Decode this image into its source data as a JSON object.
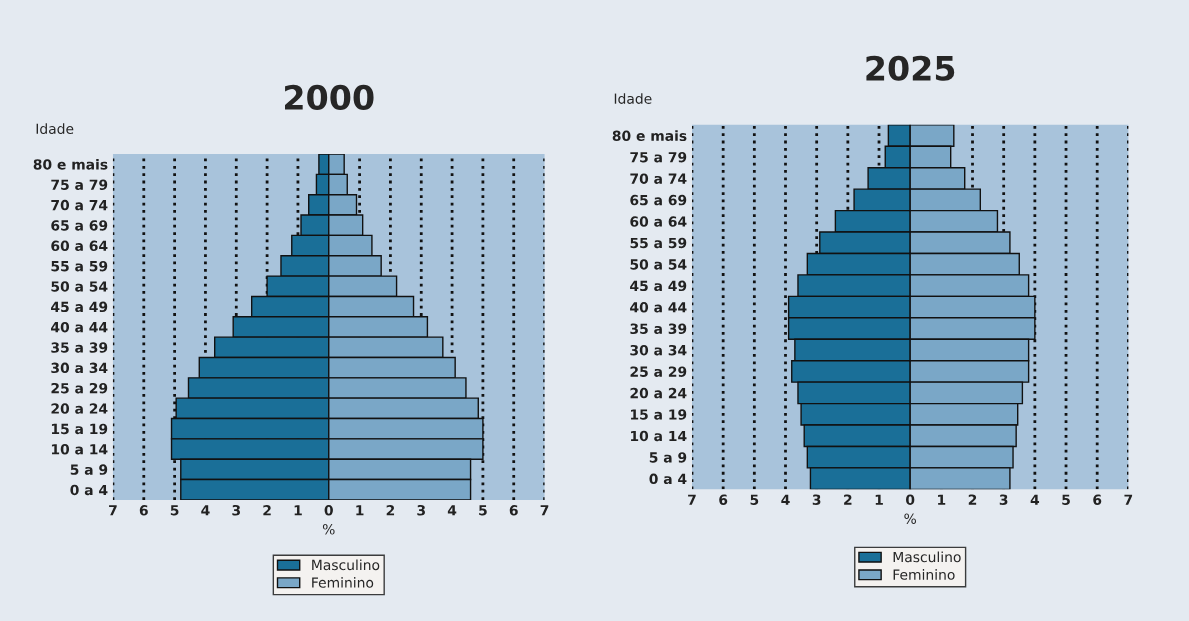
{
  "chart_data": [
    {
      "type": "bar",
      "orientation": "horizontal",
      "stacked": true,
      "title": "2000",
      "ylabel": "Idade",
      "xlabel": "%",
      "categories": [
        "80 e mais",
        "75 a 79",
        "70 a 74",
        "65 a 69",
        "60 a 64",
        "55 a 59",
        "50 a 54",
        "45 a 49",
        "40 a 44",
        "35 a 39",
        "30 a 34",
        "25 a 29",
        "20 a 24",
        "15 a 19",
        "10 a 14",
        "5 a 9",
        "0 a 4"
      ],
      "series": [
        {
          "name": "Masculino",
          "color": "#1a6f98",
          "values": [
            -0.32,
            -0.4,
            -0.65,
            -0.9,
            -1.2,
            -1.55,
            -2.0,
            -2.5,
            -3.1,
            -3.7,
            -4.2,
            -4.55,
            -4.95,
            -5.1,
            -5.1,
            -4.8,
            -4.8
          ]
        },
        {
          "name": "Feminino",
          "color": "#7aa7c7",
          "values": [
            0.5,
            0.6,
            0.9,
            1.1,
            1.4,
            1.7,
            2.2,
            2.75,
            3.2,
            3.7,
            4.1,
            4.45,
            4.85,
            5.0,
            5.0,
            4.6,
            4.6
          ]
        }
      ],
      "xlim": [
        -7,
        7
      ],
      "xticks": [
        {
          "value": -7,
          "label": "7"
        },
        {
          "value": -6,
          "label": "6"
        },
        {
          "value": -5,
          "label": "5"
        },
        {
          "value": -4,
          "label": "4"
        },
        {
          "value": -3,
          "label": "3"
        },
        {
          "value": -2,
          "label": "2"
        },
        {
          "value": -1,
          "label": "1"
        },
        0,
        1,
        2,
        3,
        4,
        5,
        6,
        7
      ],
      "grid": "x",
      "line_style": "dotted",
      "legend": "bottom"
    },
    {
      "type": "bar",
      "orientation": "horizontal",
      "stacked": true,
      "title": "2025",
      "ylabel": "Idade",
      "xlabel": "%",
      "categories": [
        "80 e mais",
        "75 a 79",
        "70 a 74",
        "65 a 69",
        "60 a 64",
        "55 a 59",
        "50 a 54",
        "45 a 49",
        "40 a 44",
        "35 a 39",
        "30 a 34",
        "25 a 29",
        "20 a 24",
        "15 a 19",
        "10 a 14",
        "5 a 9",
        "0 a 4"
      ],
      "series": [
        {
          "name": "Masculino",
          "color": "#1a6f98",
          "values": [
            -0.7,
            -0.8,
            -1.35,
            -1.8,
            -2.4,
            -2.9,
            -3.3,
            -3.6,
            -3.9,
            -3.9,
            -3.7,
            -3.8,
            -3.6,
            -3.5,
            -3.4,
            -3.3,
            -3.2
          ]
        },
        {
          "name": "Feminino",
          "color": "#7aa7c7",
          "values": [
            1.4,
            1.3,
            1.75,
            2.25,
            2.8,
            3.2,
            3.5,
            3.8,
            4.0,
            4.0,
            3.8,
            3.8,
            3.6,
            3.45,
            3.4,
            3.3,
            3.2
          ]
        }
      ],
      "xlim": [
        -7,
        7
      ],
      "xticks": [
        {
          "value": -7,
          "label": "7"
        },
        {
          "value": -6,
          "label": "6"
        },
        {
          "value": -5,
          "label": "5"
        },
        {
          "value": -4,
          "label": "4"
        },
        {
          "value": -3,
          "label": "3"
        },
        {
          "value": -2,
          "label": "2"
        },
        {
          "value": -1,
          "label": "1"
        },
        0,
        1,
        2,
        3,
        4,
        5,
        6,
        7
      ],
      "grid": "x",
      "line_style": "dotted",
      "legend": "bottom"
    }
  ]
}
